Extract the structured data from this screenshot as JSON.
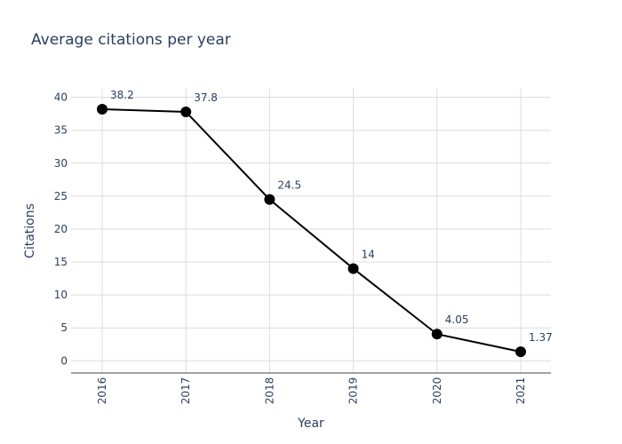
{
  "chart_data": {
    "type": "line",
    "title": "Average citations per year",
    "xlabel": "Year",
    "ylabel": "Citations",
    "x": [
      "2016",
      "2017",
      "2018",
      "2019",
      "2020",
      "2021"
    ],
    "series": [
      {
        "values": [
          38.2,
          37.8,
          24.5,
          14,
          4.05,
          1.37
        ],
        "labels": [
          "38.2",
          "37.8",
          "24.5",
          "14",
          "4.05",
          "1.37"
        ],
        "color": "#000000"
      }
    ],
    "ylim": [
      -1.85,
      41.3
    ],
    "yticks": [
      0,
      5,
      10,
      15,
      20,
      25,
      30,
      35,
      40
    ],
    "grid": true,
    "legend": "none"
  }
}
